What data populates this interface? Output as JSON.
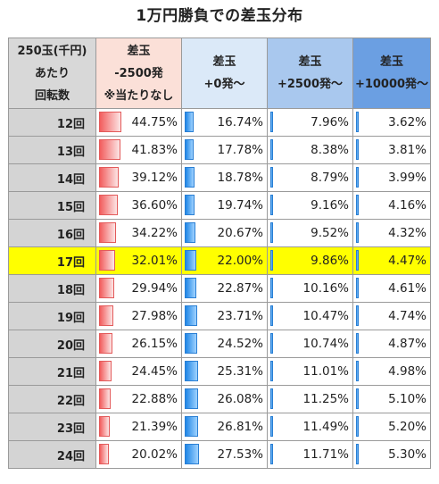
{
  "title": "1万円勝負での差玉分布",
  "headers": [
    [
      "250玉(千円)",
      "あたり",
      "回転数"
    ],
    [
      "差玉",
      "-2500発",
      "※当たりなし"
    ],
    [
      "差玉",
      "+0発～"
    ],
    [
      "差玉",
      "+2500発～"
    ],
    [
      "差玉",
      "+10000発～"
    ]
  ],
  "highlight_row": "17回",
  "rows": [
    {
      "label": "12回",
      "values": [
        "44.75%",
        "16.74%",
        "7.96%",
        "3.62%"
      ]
    },
    {
      "label": "13回",
      "values": [
        "41.83%",
        "17.78%",
        "8.38%",
        "3.81%"
      ]
    },
    {
      "label": "14回",
      "values": [
        "39.12%",
        "18.78%",
        "8.79%",
        "3.99%"
      ]
    },
    {
      "label": "15回",
      "values": [
        "36.60%",
        "19.74%",
        "9.16%",
        "4.16%"
      ]
    },
    {
      "label": "16回",
      "values": [
        "34.22%",
        "20.67%",
        "9.52%",
        "4.32%"
      ]
    },
    {
      "label": "17回",
      "values": [
        "32.01%",
        "22.00%",
        "9.86%",
        "4.47%"
      ]
    },
    {
      "label": "18回",
      "values": [
        "29.94%",
        "22.87%",
        "10.16%",
        "4.61%"
      ]
    },
    {
      "label": "19回",
      "values": [
        "27.98%",
        "23.71%",
        "10.47%",
        "4.74%"
      ]
    },
    {
      "label": "20回",
      "values": [
        "26.15%",
        "24.52%",
        "10.74%",
        "4.87%"
      ]
    },
    {
      "label": "21回",
      "values": [
        "24.45%",
        "25.31%",
        "11.01%",
        "4.98%"
      ]
    },
    {
      "label": "22回",
      "values": [
        "22.88%",
        "26.08%",
        "11.25%",
        "5.10%"
      ]
    },
    {
      "label": "23回",
      "values": [
        "21.39%",
        "26.81%",
        "11.49%",
        "5.20%"
      ]
    },
    {
      "label": "24回",
      "values": [
        "20.02%",
        "27.53%",
        "11.71%",
        "5.30%"
      ]
    }
  ]
}
